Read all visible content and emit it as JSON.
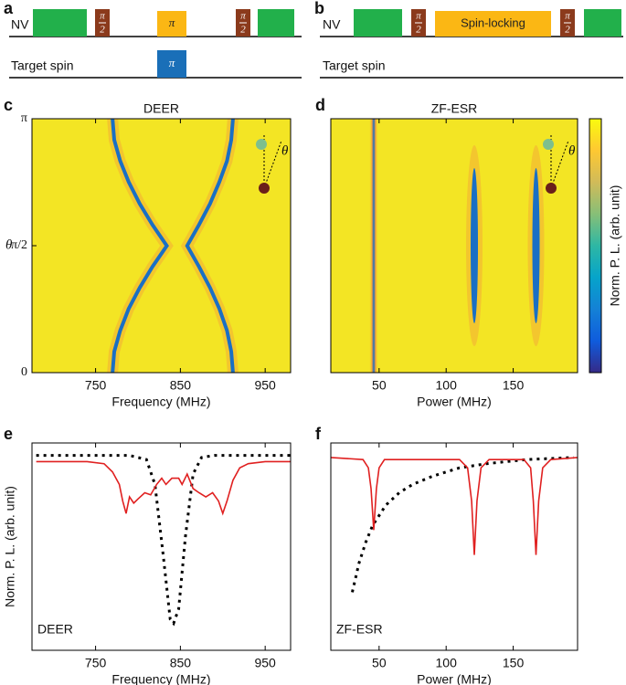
{
  "sequences": [
    {
      "panel_label": "a",
      "channels": [
        {
          "name": "NV",
          "pulses": [
            {
              "color": "#22b04b"
            },
            {
              "color": "#8b3a1c",
              "label_num": "π",
              "label_den": "2"
            },
            {
              "color": "#fbb714",
              "label": "π"
            },
            {
              "color": "#8b3a1c",
              "label_num": "π",
              "label_den": "2"
            },
            {
              "color": "#22b04b"
            }
          ]
        },
        {
          "name": "Target spin",
          "pulses": [
            {
              "color": "#1a6fb8",
              "label": "π"
            }
          ]
        }
      ]
    },
    {
      "panel_label": "b",
      "channels": [
        {
          "name": "NV",
          "pulses": [
            {
              "color": "#22b04b"
            },
            {
              "color": "#8b3a1c",
              "label_num": "π",
              "label_den": "2"
            },
            {
              "color": "#fbb714",
              "label": "Spin-locking"
            },
            {
              "color": "#8b3a1c",
              "label_num": "π",
              "label_den": "2"
            },
            {
              "color": "#22b04b"
            }
          ]
        },
        {
          "name": "Target spin",
          "pulses": []
        }
      ]
    }
  ],
  "chart_data": [
    {
      "type": "heatmap",
      "panel_label": "c",
      "title": "DEER",
      "xlabel": "Frequency (MHz)",
      "ylabel": "θ",
      "inset_label": "θ",
      "xlim": [
        675,
        980
      ],
      "xticks": [
        750,
        850,
        950
      ],
      "ylim": [
        0,
        3.1416
      ],
      "yticks": [
        0,
        {
          "value": 1.5708,
          "label": "π/2"
        },
        {
          "value": 3.1416,
          "label": "π"
        }
      ],
      "background": "#f3e524",
      "color": "#1a6fc4",
      "series": [
        {
          "x": [
            770,
            772,
            779,
            789,
            802,
            817,
            834,
            817,
            802,
            789,
            779,
            772,
            770
          ],
          "y": [
            0,
            0.26,
            0.52,
            0.79,
            1.05,
            1.31,
            1.57,
            1.83,
            2.09,
            2.36,
            2.62,
            2.88,
            3.14
          ]
        },
        {
          "x": [
            912,
            910,
            905,
            896,
            885,
            872,
            858,
            872,
            885,
            896,
            905,
            910,
            912
          ],
          "y": [
            0,
            0.26,
            0.52,
            0.79,
            1.05,
            1.31,
            1.57,
            1.83,
            2.09,
            2.36,
            2.62,
            2.88,
            3.14
          ]
        }
      ]
    },
    {
      "type": "stripes",
      "panel_label": "d",
      "title": "ZF-ESR",
      "xlabel": "Power (MHz)",
      "inset_label": "θ",
      "colorbar_label": "Norm. P. L. (arb. unit)",
      "colormap": [
        "#352a87",
        "#0f5cdd",
        "#1481d6",
        "#06a4ca",
        "#2eb7a4",
        "#87bf77",
        "#d1bb59",
        "#fec832",
        "#f9fb0e"
      ],
      "xlim": [
        14,
        198
      ],
      "xticks": [
        50,
        100,
        150
      ],
      "background": "#f3e524",
      "color": "#1a6fc4",
      "lines": [
        46,
        121,
        167
      ]
    },
    {
      "type": "line",
      "panel_label": "e",
      "xlabel": "Frequency (MHz)",
      "ylabel": "Norm. P. L. (arb. unit)",
      "annotation": "DEER",
      "xlim": [
        675,
        980
      ],
      "xticks": [
        750,
        850,
        950
      ],
      "ylim": [
        0,
        1
      ],
      "series": [
        {
          "color": "#000000",
          "dashed": true,
          "x": [
            680,
            790,
            810,
            820,
            830,
            838,
            842,
            848,
            856,
            865,
            875,
            890,
            980
          ],
          "values": [
            0.94,
            0.94,
            0.92,
            0.8,
            0.45,
            0.15,
            0.13,
            0.2,
            0.55,
            0.85,
            0.93,
            0.94,
            0.94
          ]
        },
        {
          "color": "#e02020",
          "dashed": false,
          "x": [
            680,
            740,
            760,
            770,
            778,
            782,
            786,
            790,
            795,
            800,
            808,
            815,
            822,
            828,
            833,
            840,
            848,
            852,
            858,
            865,
            872,
            880,
            888,
            895,
            900,
            905,
            912,
            920,
            930,
            950,
            980
          ],
          "values": [
            0.91,
            0.91,
            0.9,
            0.86,
            0.8,
            0.72,
            0.66,
            0.74,
            0.71,
            0.73,
            0.76,
            0.75,
            0.8,
            0.83,
            0.8,
            0.83,
            0.83,
            0.8,
            0.85,
            0.78,
            0.76,
            0.74,
            0.76,
            0.72,
            0.66,
            0.72,
            0.82,
            0.88,
            0.9,
            0.91,
            0.91
          ]
        }
      ]
    },
    {
      "type": "line",
      "panel_label": "f",
      "xlabel": "Power (MHz)",
      "annotation": "ZF-ESR",
      "xlim": [
        14,
        198
      ],
      "xticks": [
        50,
        100,
        150
      ],
      "ylim": [
        0,
        1
      ],
      "series": [
        {
          "color": "#000000",
          "dashed": true,
          "x": [
            30,
            35,
            40,
            45,
            55,
            65,
            75,
            90,
            110,
            130,
            160,
            195
          ],
          "values": [
            0.28,
            0.42,
            0.52,
            0.6,
            0.7,
            0.76,
            0.8,
            0.84,
            0.88,
            0.9,
            0.92,
            0.93
          ]
        },
        {
          "color": "#e02020",
          "dashed": false,
          "x": [
            14,
            38,
            42,
            44,
            46,
            48,
            50,
            54,
            110,
            116,
            119,
            121,
            123,
            126,
            132,
            158,
            163,
            165,
            167,
            169,
            172,
            178,
            198
          ],
          "values": [
            0.93,
            0.92,
            0.88,
            0.78,
            0.58,
            0.78,
            0.88,
            0.92,
            0.92,
            0.88,
            0.72,
            0.46,
            0.72,
            0.88,
            0.92,
            0.92,
            0.88,
            0.72,
            0.46,
            0.72,
            0.88,
            0.92,
            0.93
          ]
        }
      ]
    }
  ]
}
